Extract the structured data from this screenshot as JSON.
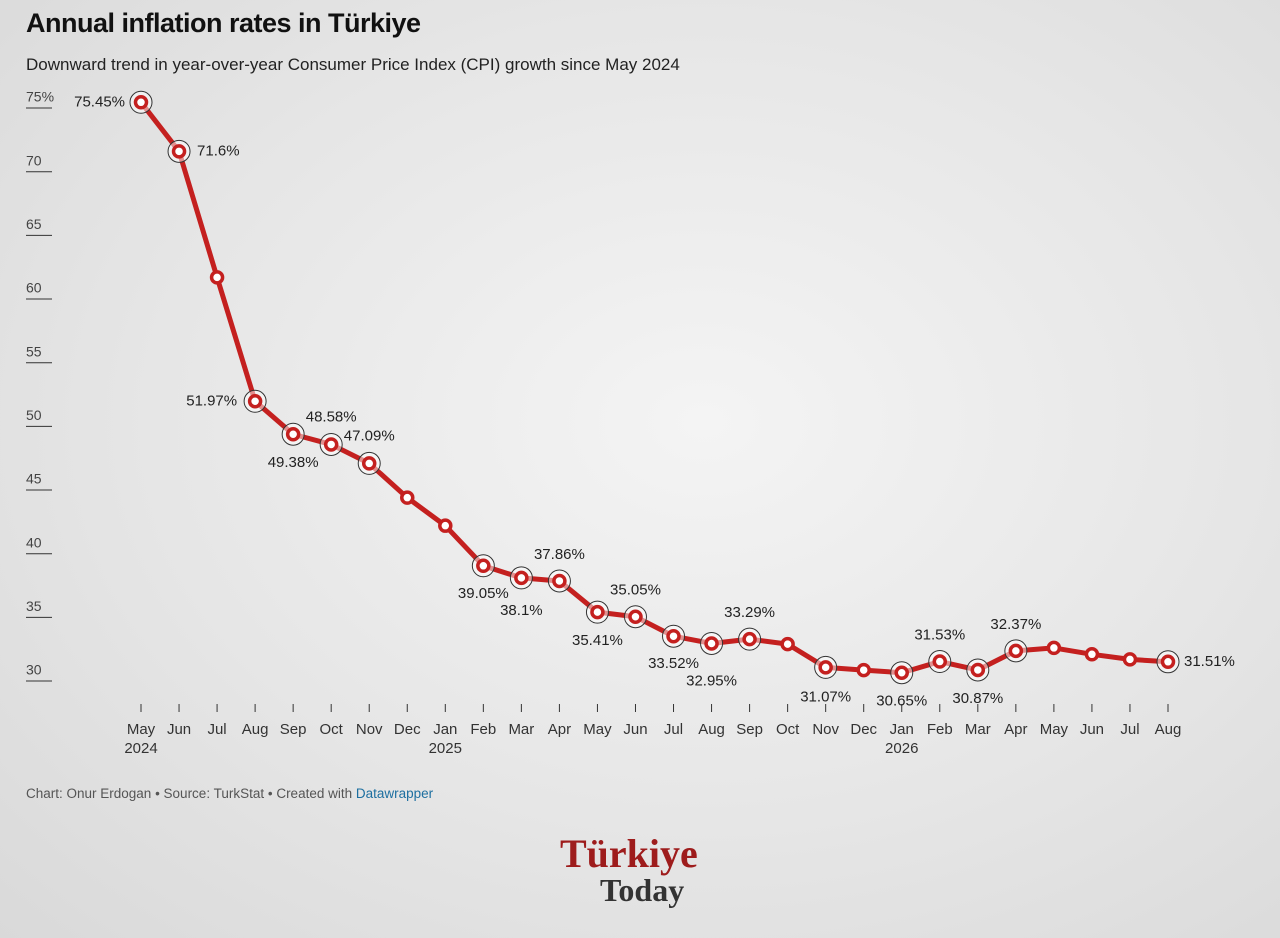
{
  "chart_data": {
    "type": "line",
    "title": "Annual inflation rates in Türkiye",
    "subtitle": "Downward trend in year-over-year Consumer Price Index (CPI) growth since May 2024",
    "categories": [
      "May\n2024",
      "Jun",
      "Jul",
      "Aug",
      "Sep",
      "Oct",
      "Nov",
      "Dec",
      "Jan\n2025",
      "Feb",
      "Mar",
      "Apr",
      "May",
      "Jun",
      "Jul",
      "Aug",
      "Sep",
      "Oct",
      "Nov",
      "Dec",
      "Jan\n2026",
      "Feb",
      "Mar",
      "Apr",
      "May",
      "Jun",
      "Jul",
      "Aug"
    ],
    "series": [
      {
        "name": "Annual inflation",
        "color": "#c4201f",
        "values": [
          75.45,
          71.6,
          61.7,
          51.97,
          49.38,
          48.58,
          47.09,
          44.4,
          42.2,
          39.05,
          38.1,
          37.86,
          35.41,
          35.05,
          33.52,
          32.95,
          33.29,
          32.9,
          31.07,
          30.86,
          30.65,
          31.53,
          30.87,
          32.37,
          32.6,
          32.1,
          31.7,
          31.51
        ],
        "value_labels": [
          "75.45%",
          "71.6%",
          null,
          "51.97%",
          "49.38%",
          "48.58%",
          "47.09%",
          null,
          null,
          "39.05%",
          "38.1%",
          "37.86%",
          "35.41%",
          "35.05%",
          "33.52%",
          "32.95%",
          "33.29%",
          null,
          "31.07%",
          null,
          "30.65%",
          "31.53%",
          "30.87%",
          "32.37%",
          null,
          null,
          null,
          "31.51%"
        ]
      }
    ],
    "ylim": [
      28,
      76
    ],
    "yticks": [
      30,
      35,
      40,
      45,
      50,
      55,
      60,
      65,
      70,
      {
        "value": 75,
        "label": "75%"
      }
    ],
    "footer": "Chart: Onur Erdogan • Source: TurkStat • Created with ",
    "footer_link": "Datawrapper"
  },
  "logo": {
    "line1": "Türkiye",
    "line2": "Today"
  }
}
